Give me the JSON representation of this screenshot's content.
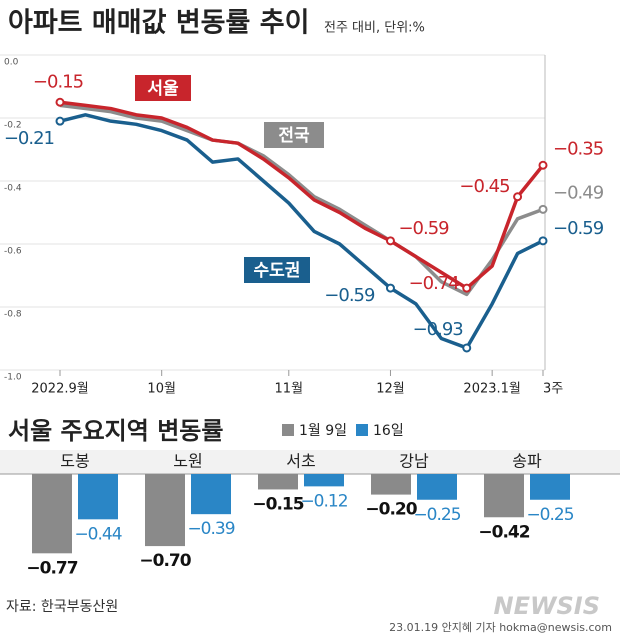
{
  "charts": [
    {
      "type": "line",
      "title": "아파트 매매값 변동률 추이",
      "subtitle": "전주 대비, 단위:%",
      "categories": [
        "2022.9월",
        null,
        null,
        null,
        "10월",
        null,
        null,
        null,
        null,
        "11월",
        null,
        null,
        null,
        "12월",
        null,
        null,
        null,
        "2023.1월",
        null,
        "3주"
      ],
      "ylim": [
        -1,
        0
      ],
      "yticks": [
        {
          "value": 0,
          "label": "0.0"
        },
        -0.2,
        -0.4,
        -0.6,
        -0.8,
        {
          "value": -1,
          "label": "-1.0"
        }
      ],
      "grid": true,
      "series": [
        {
          "name": "전국",
          "color": "#8c8c8c",
          "values": [
            -0.16,
            -0.17,
            -0.18,
            -0.2,
            -0.21,
            -0.24,
            -0.27,
            -0.28,
            -0.32,
            -0.38,
            -0.45,
            -0.49,
            -0.54,
            -0.59,
            -0.64,
            -0.72,
            -0.76,
            -0.65,
            -0.52,
            -0.49
          ],
          "value_labels": [
            null,
            null,
            null,
            null,
            null,
            null,
            null,
            null,
            null,
            null,
            null,
            null,
            null,
            null,
            null,
            null,
            null,
            null,
            null,
            "−0.49"
          ]
        },
        {
          "name": "서울",
          "color": "#c8252c",
          "values": [
            -0.15,
            -0.16,
            -0.17,
            -0.19,
            -0.2,
            -0.23,
            -0.27,
            -0.28,
            -0.33,
            -0.39,
            -0.46,
            -0.5,
            -0.55,
            -0.59,
            -0.64,
            -0.69,
            -0.74,
            -0.67,
            -0.45,
            -0.35
          ],
          "value_labels": [
            "−0.15",
            null,
            null,
            null,
            null,
            null,
            null,
            null,
            null,
            null,
            null,
            null,
            null,
            "−0.59",
            null,
            null,
            "−0.74",
            null,
            "−0.45",
            "−0.35"
          ]
        },
        {
          "name": "수도권",
          "color": "#1a5f8e",
          "values": [
            -0.21,
            -0.19,
            -0.21,
            -0.22,
            -0.24,
            -0.27,
            -0.34,
            -0.33,
            -0.4,
            -0.47,
            -0.56,
            -0.6,
            -0.67,
            -0.74,
            -0.79,
            -0.9,
            -0.93,
            -0.79,
            -0.63,
            -0.59
          ],
          "value_labels": [
            "−0.21",
            null,
            null,
            null,
            null,
            null,
            null,
            null,
            null,
            null,
            null,
            null,
            null,
            null,
            null,
            null,
            "−0.93",
            null,
            null,
            "−0.59"
          ]
        }
      ],
      "annotations": [
        "−0.59"
      ]
    },
    {
      "type": "grouped_bar",
      "title": "서울 주요지역 변동률",
      "categories": [
        "도봉",
        "노원",
        "서초",
        "강남",
        "송파"
      ],
      "series": [
        {
          "name": "1월 9일",
          "color": "#8a8a8a",
          "values": [
            -0.77,
            -0.7,
            -0.15,
            -0.2,
            -0.42
          ],
          "value_labels": [
            "−0.77",
            "−0.70",
            "−0.15",
            "−0.20",
            "−0.42"
          ]
        },
        {
          "name": "16일",
          "color": "#2a86c6",
          "values": [
            -0.44,
            -0.39,
            -0.12,
            -0.25,
            -0.25
          ],
          "value_labels": [
            "−0.44",
            "−0.39",
            "−0.12",
            "−0.25",
            "−0.25"
          ]
        }
      ]
    }
  ],
  "footer": {
    "source": "자료: 한국부동산원",
    "credit": "23.01.19 안지혜 기자 hokma@newsis.com",
    "logo": "NEWSIS"
  }
}
